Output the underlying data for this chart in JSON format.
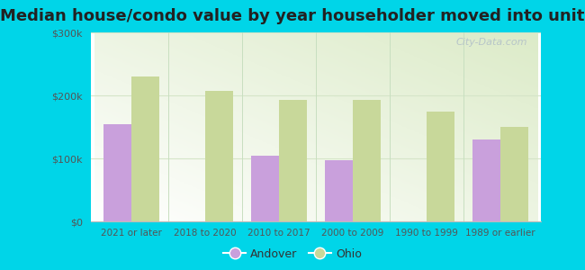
{
  "title": "Median house/condo value by year householder moved into unit",
  "categories": [
    "2021 or later",
    "2018 to 2020",
    "2010 to 2017",
    "2000 to 2009",
    "1990 to 1999",
    "1989 or earlier"
  ],
  "andover_values": [
    155000,
    null,
    105000,
    97000,
    null,
    130000
  ],
  "ohio_values": [
    230000,
    207000,
    193000,
    193000,
    175000,
    150000
  ],
  "andover_color": "#c9a0dc",
  "ohio_color": "#c8d89a",
  "background_outer": "#00d5e8",
  "ylim": [
    0,
    300000
  ],
  "yticks": [
    0,
    100000,
    200000,
    300000
  ],
  "ytick_labels": [
    "$0",
    "$100k",
    "$200k",
    "$300k"
  ],
  "legend_andover": "Andover",
  "legend_ohio": "Ohio",
  "title_fontsize": 13,
  "bar_width": 0.38,
  "grid_color": "#e0e8d8",
  "watermark": "City-Data.com"
}
